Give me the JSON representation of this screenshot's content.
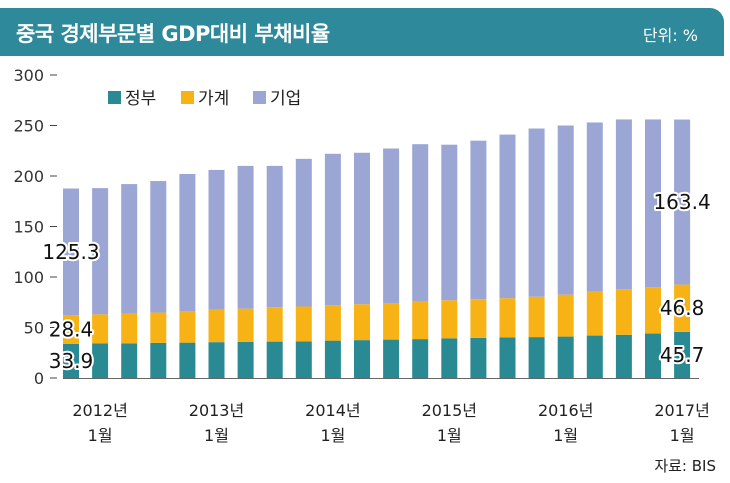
{
  "header": {
    "title": "중국 경제부문별 GDP대비 부채비율",
    "unit": "단위: %"
  },
  "footer": {
    "source": "자료: BIS"
  },
  "chart_data": {
    "type": "bar",
    "stacked": true,
    "title": "중국 경제부문별 GDP대비 부채비율",
    "ylim": [
      0,
      300
    ],
    "yticks": [
      0,
      50,
      100,
      150,
      200,
      250,
      300
    ],
    "grid": false,
    "legend_position": "top-left",
    "x_tick_labels": [
      {
        "line1": "2012년",
        "line2": "1월",
        "index": 1
      },
      {
        "line1": "2013년",
        "line2": "1월",
        "index": 5
      },
      {
        "line1": "2014년",
        "line2": "1월",
        "index": 9
      },
      {
        "line1": "2015년",
        "line2": "1월",
        "index": 13
      },
      {
        "line1": "2016년",
        "line2": "1월",
        "index": 17
      },
      {
        "line1": "2017년",
        "line2": "1월",
        "index": 21
      }
    ],
    "categories": [
      "2011-Q4",
      "2012-Q1",
      "2012-Q2",
      "2012-Q3",
      "2012-Q4",
      "2013-Q1",
      "2013-Q2",
      "2013-Q3",
      "2013-Q4",
      "2014-Q1",
      "2014-Q2",
      "2014-Q3",
      "2014-Q4",
      "2015-Q1",
      "2015-Q2",
      "2015-Q3",
      "2015-Q4",
      "2016-Q1",
      "2016-Q2",
      "2016-Q3",
      "2016-Q4",
      "2017-Q1"
    ],
    "series": [
      {
        "name": "정부",
        "color": "#2a8a93",
        "values": [
          33.9,
          34.2,
          34.2,
          34.8,
          35.0,
          35.5,
          35.7,
          36.0,
          36.3,
          37.0,
          37.5,
          38.0,
          38.5,
          39.3,
          39.8,
          40.2,
          40.5,
          41.0,
          42.0,
          42.8,
          44.0,
          45.7
        ]
      },
      {
        "name": "가계",
        "color": "#f7b315",
        "values": [
          28.4,
          28.8,
          29.5,
          30.0,
          31.0,
          32.0,
          33.0,
          34.0,
          34.5,
          35.0,
          35.5,
          36.2,
          37.0,
          37.7,
          38.2,
          38.8,
          40.0,
          41.5,
          43.5,
          45.0,
          46.0,
          46.8
        ]
      },
      {
        "name": "기업",
        "color": "#9ba6d5",
        "values": [
          125.3,
          125.0,
          128.3,
          130.2,
          136.0,
          138.5,
          141.3,
          140.0,
          146.2,
          150.0,
          150.0,
          153.0,
          156.0,
          154.0,
          157.0,
          162.0,
          166.5,
          167.5,
          167.5,
          168.2,
          166.0,
          163.4
        ]
      }
    ],
    "annotations": [
      {
        "text": "33.9",
        "series": 0,
        "index": 0
      },
      {
        "text": "28.4",
        "series": 1,
        "index": 0
      },
      {
        "text": "125.3",
        "series": 2,
        "index": 0
      },
      {
        "text": "45.7",
        "series": 0,
        "index": 21
      },
      {
        "text": "46.8",
        "series": 1,
        "index": 21
      },
      {
        "text": "163.4",
        "series": 2,
        "index": 21
      }
    ]
  }
}
